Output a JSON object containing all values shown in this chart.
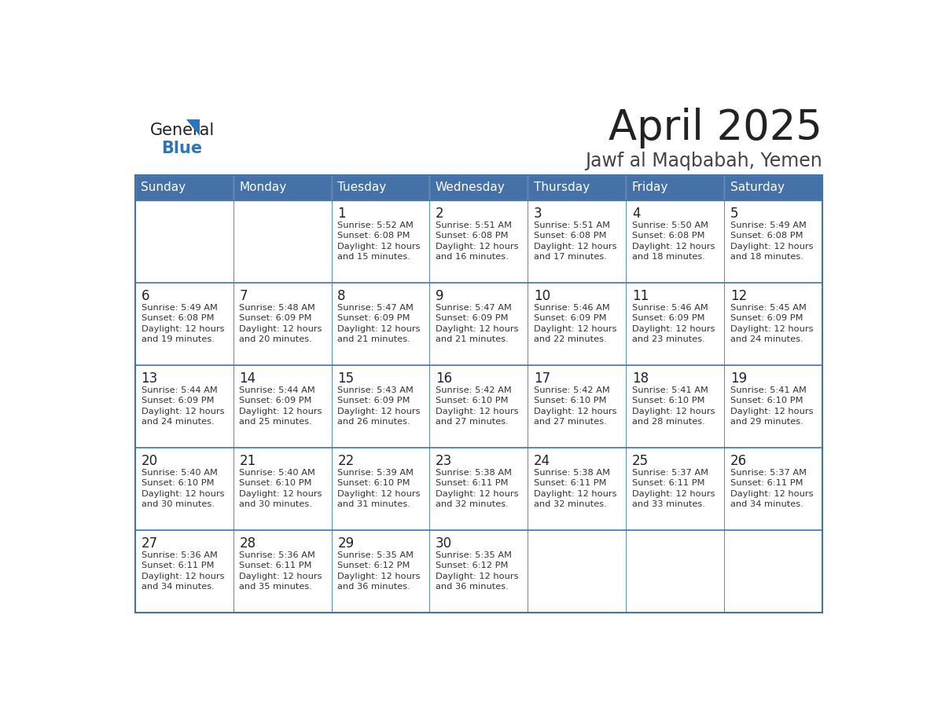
{
  "title": "April 2025",
  "subtitle": "Jawf al Maqbabah, Yemen",
  "days_of_week": [
    "Sunday",
    "Monday",
    "Tuesday",
    "Wednesday",
    "Thursday",
    "Friday",
    "Saturday"
  ],
  "header_bg": "#4472A8",
  "header_text": "#FFFFFF",
  "row_bg_even": "#FFFFFF",
  "row_bg_odd": "#F0F4F8",
  "cell_text_color": "#333333",
  "day_num_color": "#222222",
  "border_color": "#4472A8",
  "row_border_color": "#4472A8",
  "title_color": "#222222",
  "subtitle_color": "#444444",
  "logo_general_color": "#222222",
  "logo_blue_color": "#2E75B6",
  "calendar_data": [
    [
      {
        "day": null,
        "info": ""
      },
      {
        "day": null,
        "info": ""
      },
      {
        "day": 1,
        "info": "Sunrise: 5:52 AM\nSunset: 6:08 PM\nDaylight: 12 hours\nand 15 minutes."
      },
      {
        "day": 2,
        "info": "Sunrise: 5:51 AM\nSunset: 6:08 PM\nDaylight: 12 hours\nand 16 minutes."
      },
      {
        "day": 3,
        "info": "Sunrise: 5:51 AM\nSunset: 6:08 PM\nDaylight: 12 hours\nand 17 minutes."
      },
      {
        "day": 4,
        "info": "Sunrise: 5:50 AM\nSunset: 6:08 PM\nDaylight: 12 hours\nand 18 minutes."
      },
      {
        "day": 5,
        "info": "Sunrise: 5:49 AM\nSunset: 6:08 PM\nDaylight: 12 hours\nand 18 minutes."
      }
    ],
    [
      {
        "day": 6,
        "info": "Sunrise: 5:49 AM\nSunset: 6:08 PM\nDaylight: 12 hours\nand 19 minutes."
      },
      {
        "day": 7,
        "info": "Sunrise: 5:48 AM\nSunset: 6:09 PM\nDaylight: 12 hours\nand 20 minutes."
      },
      {
        "day": 8,
        "info": "Sunrise: 5:47 AM\nSunset: 6:09 PM\nDaylight: 12 hours\nand 21 minutes."
      },
      {
        "day": 9,
        "info": "Sunrise: 5:47 AM\nSunset: 6:09 PM\nDaylight: 12 hours\nand 21 minutes."
      },
      {
        "day": 10,
        "info": "Sunrise: 5:46 AM\nSunset: 6:09 PM\nDaylight: 12 hours\nand 22 minutes."
      },
      {
        "day": 11,
        "info": "Sunrise: 5:46 AM\nSunset: 6:09 PM\nDaylight: 12 hours\nand 23 minutes."
      },
      {
        "day": 12,
        "info": "Sunrise: 5:45 AM\nSunset: 6:09 PM\nDaylight: 12 hours\nand 24 minutes."
      }
    ],
    [
      {
        "day": 13,
        "info": "Sunrise: 5:44 AM\nSunset: 6:09 PM\nDaylight: 12 hours\nand 24 minutes."
      },
      {
        "day": 14,
        "info": "Sunrise: 5:44 AM\nSunset: 6:09 PM\nDaylight: 12 hours\nand 25 minutes."
      },
      {
        "day": 15,
        "info": "Sunrise: 5:43 AM\nSunset: 6:09 PM\nDaylight: 12 hours\nand 26 minutes."
      },
      {
        "day": 16,
        "info": "Sunrise: 5:42 AM\nSunset: 6:10 PM\nDaylight: 12 hours\nand 27 minutes."
      },
      {
        "day": 17,
        "info": "Sunrise: 5:42 AM\nSunset: 6:10 PM\nDaylight: 12 hours\nand 27 minutes."
      },
      {
        "day": 18,
        "info": "Sunrise: 5:41 AM\nSunset: 6:10 PM\nDaylight: 12 hours\nand 28 minutes."
      },
      {
        "day": 19,
        "info": "Sunrise: 5:41 AM\nSunset: 6:10 PM\nDaylight: 12 hours\nand 29 minutes."
      }
    ],
    [
      {
        "day": 20,
        "info": "Sunrise: 5:40 AM\nSunset: 6:10 PM\nDaylight: 12 hours\nand 30 minutes."
      },
      {
        "day": 21,
        "info": "Sunrise: 5:40 AM\nSunset: 6:10 PM\nDaylight: 12 hours\nand 30 minutes."
      },
      {
        "day": 22,
        "info": "Sunrise: 5:39 AM\nSunset: 6:10 PM\nDaylight: 12 hours\nand 31 minutes."
      },
      {
        "day": 23,
        "info": "Sunrise: 5:38 AM\nSunset: 6:11 PM\nDaylight: 12 hours\nand 32 minutes."
      },
      {
        "day": 24,
        "info": "Sunrise: 5:38 AM\nSunset: 6:11 PM\nDaylight: 12 hours\nand 32 minutes."
      },
      {
        "day": 25,
        "info": "Sunrise: 5:37 AM\nSunset: 6:11 PM\nDaylight: 12 hours\nand 33 minutes."
      },
      {
        "day": 26,
        "info": "Sunrise: 5:37 AM\nSunset: 6:11 PM\nDaylight: 12 hours\nand 34 minutes."
      }
    ],
    [
      {
        "day": 27,
        "info": "Sunrise: 5:36 AM\nSunset: 6:11 PM\nDaylight: 12 hours\nand 34 minutes."
      },
      {
        "day": 28,
        "info": "Sunrise: 5:36 AM\nSunset: 6:11 PM\nDaylight: 12 hours\nand 35 minutes."
      },
      {
        "day": 29,
        "info": "Sunrise: 5:35 AM\nSunset: 6:12 PM\nDaylight: 12 hours\nand 36 minutes."
      },
      {
        "day": 30,
        "info": "Sunrise: 5:35 AM\nSunset: 6:12 PM\nDaylight: 12 hours\nand 36 minutes."
      },
      {
        "day": null,
        "info": ""
      },
      {
        "day": null,
        "info": ""
      },
      {
        "day": null,
        "info": ""
      }
    ]
  ]
}
